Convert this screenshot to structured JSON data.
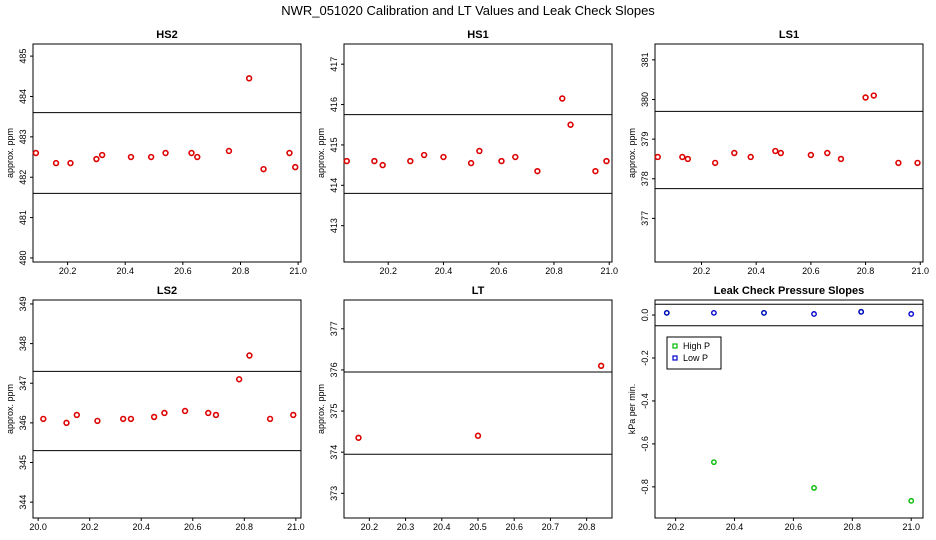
{
  "title": "NWR_051020  Calibration and LT Values and Leak Check Slopes",
  "colors": {
    "cal": "#dd0000",
    "high": "#00bb00",
    "low": "#0000cc",
    "axis": "#000000"
  },
  "chart_data": [
    {
      "type": "scatter",
      "title": "HS2",
      "ylabel": "approx. ppm",
      "xlim": [
        20.08,
        21.01
      ],
      "ylim": [
        479.9,
        485.3
      ],
      "xticks": [
        "20.2",
        "20.4",
        "20.6",
        "20.8",
        "21.0"
      ],
      "xtick_values": [
        20.2,
        20.4,
        20.6,
        20.8,
        21.0
      ],
      "yticks": [
        "480",
        "481",
        "482",
        "483",
        "484",
        "485"
      ],
      "ytick_values": [
        480,
        481,
        482,
        483,
        484,
        485
      ],
      "hlines": [
        483.6,
        481.6
      ],
      "x": [
        20.09,
        20.16,
        20.21,
        20.3,
        20.32,
        20.42,
        20.49,
        20.54,
        20.63,
        20.65,
        20.76,
        20.83,
        20.88,
        20.97,
        20.99
      ],
      "y": [
        482.6,
        482.35,
        482.35,
        482.45,
        482.55,
        482.5,
        482.5,
        482.6,
        482.6,
        482.5,
        482.65,
        484.45,
        482.2,
        482.6,
        482.25
      ]
    },
    {
      "type": "scatter",
      "title": "HS1",
      "ylabel": "approx. ppm",
      "xlim": [
        20.04,
        21.01
      ],
      "ylim": [
        412.1,
        417.5
      ],
      "xticks": [
        "20.2",
        "20.4",
        "20.6",
        "20.8",
        "21.0"
      ],
      "xtick_values": [
        20.2,
        20.4,
        20.6,
        20.8,
        21.0
      ],
      "yticks": [
        "413",
        "414",
        "415",
        "416",
        "417"
      ],
      "ytick_values": [
        413,
        414,
        415,
        416,
        417
      ],
      "hlines": [
        415.75,
        413.8
      ],
      "x": [
        20.05,
        20.15,
        20.18,
        20.28,
        20.33,
        20.4,
        20.5,
        20.53,
        20.61,
        20.66,
        20.74,
        20.83,
        20.86,
        20.95,
        20.99
      ],
      "y": [
        414.6,
        414.6,
        414.5,
        414.6,
        414.75,
        414.7,
        414.55,
        414.85,
        414.6,
        414.7,
        414.35,
        416.15,
        415.5,
        414.35,
        414.6
      ]
    },
    {
      "type": "scatter",
      "title": "LS1",
      "ylabel": "approx. ppm",
      "xlim": [
        20.03,
        21.01
      ],
      "ylim": [
        375.9,
        381.4
      ],
      "xticks": [
        "20.2",
        "20.4",
        "20.6",
        "20.8",
        "21.0"
      ],
      "xtick_values": [
        20.2,
        20.4,
        20.6,
        20.8,
        21.0
      ],
      "yticks": [
        "377",
        "378",
        "379",
        "380",
        "381"
      ],
      "ytick_values": [
        377,
        378,
        379,
        380,
        381
      ],
      "hlines": [
        379.7,
        377.75
      ],
      "x": [
        20.04,
        20.13,
        20.15,
        20.25,
        20.32,
        20.38,
        20.47,
        20.49,
        20.6,
        20.66,
        20.71,
        20.8,
        20.83,
        20.92,
        20.99
      ],
      "y": [
        378.55,
        378.55,
        378.5,
        378.4,
        378.65,
        378.55,
        378.7,
        378.65,
        378.6,
        378.65,
        378.5,
        380.05,
        380.1,
        378.4,
        378.4
      ]
    },
    {
      "type": "scatter",
      "title": "LS2",
      "ylabel": "approx. ppm",
      "xlim": [
        19.98,
        21.02
      ],
      "ylim": [
        343.6,
        349.1
      ],
      "xticks": [
        "20.0",
        "20.2",
        "20.4",
        "20.6",
        "20.8",
        "21.0"
      ],
      "xtick_values": [
        20.0,
        20.2,
        20.4,
        20.6,
        20.8,
        21.0
      ],
      "yticks": [
        "344",
        "345",
        "346",
        "347",
        "348",
        "349"
      ],
      "ytick_values": [
        344,
        345,
        346,
        347,
        348,
        349
      ],
      "hlines": [
        347.3,
        345.3
      ],
      "x": [
        20.02,
        20.11,
        20.15,
        20.23,
        20.33,
        20.36,
        20.45,
        20.49,
        20.57,
        20.66,
        20.69,
        20.78,
        20.82,
        20.9,
        20.99
      ],
      "y": [
        346.1,
        346.0,
        346.2,
        346.05,
        346.1,
        346.1,
        346.15,
        346.25,
        346.3,
        346.25,
        346.2,
        347.1,
        347.7,
        346.1,
        346.2
      ]
    },
    {
      "type": "scatter",
      "title": "LT",
      "ylabel": "approx. ppm",
      "xlim": [
        20.13,
        20.87
      ],
      "ylim": [
        372.4,
        377.7
      ],
      "xticks": [
        "20.2",
        "20.3",
        "20.4",
        "20.5",
        "20.6",
        "20.7",
        "20.8"
      ],
      "xtick_values": [
        20.2,
        20.3,
        20.4,
        20.5,
        20.6,
        20.7,
        20.8
      ],
      "yticks": [
        "373",
        "374",
        "375",
        "376",
        "377"
      ],
      "ytick_values": [
        373,
        374,
        375,
        376,
        377
      ],
      "hlines": [
        375.95,
        373.95
      ],
      "x": [
        20.17,
        20.5,
        20.84
      ],
      "y": [
        374.35,
        374.4,
        376.1
      ]
    },
    {
      "type": "scatter",
      "title": "Leak Check Pressure Slopes",
      "ylabel": "kPa per min.",
      "xlim": [
        20.13,
        21.04
      ],
      "ylim": [
        -0.945,
        0.07
      ],
      "xticks": [
        "20.2",
        "20.4",
        "20.6",
        "20.8",
        "21.0"
      ],
      "xtick_values": [
        20.2,
        20.4,
        20.6,
        20.8,
        21.0
      ],
      "yticks": [
        "0.0",
        "-0.2",
        "-0.4",
        "-0.6",
        "-0.8"
      ],
      "ytick_values": [
        0.0,
        -0.2,
        -0.4,
        -0.6,
        -0.8
      ],
      "hlines": [
        0.05,
        -0.05
      ],
      "legend": {
        "position": "top-left",
        "entries": [
          "High P",
          "Low P"
        ]
      },
      "series": [
        {
          "name": "High P",
          "x": [
            20.17,
            20.33,
            20.5,
            20.67,
            20.83,
            21.0
          ],
          "y": [
            0.01,
            -0.685,
            0.01,
            -0.805,
            0.015,
            -0.865
          ]
        },
        {
          "name": "Low P",
          "x": [
            20.17,
            20.33,
            20.5,
            20.67,
            20.83,
            21.0
          ],
          "y": [
            0.01,
            0.01,
            0.01,
            0.005,
            0.015,
            0.005
          ]
        }
      ]
    }
  ]
}
